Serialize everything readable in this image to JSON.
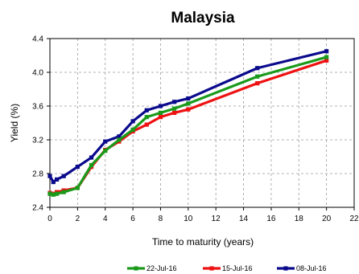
{
  "chart_data": {
    "type": "line",
    "title": "Malaysia",
    "xlabel": "Time to maturity  (years)",
    "ylabel": "Yield  (%)",
    "xlim": [
      0,
      22
    ],
    "ylim": [
      2.4,
      4.4
    ],
    "xticks": [
      "0",
      "2",
      "4",
      "6",
      "8",
      "10",
      "12",
      "14",
      "16",
      "18",
      "20",
      "22"
    ],
    "yticks": [
      "2.4",
      "2.8",
      "3.2",
      "3.6",
      "4.0",
      "4.4"
    ],
    "grid": true,
    "legend_position": "bottom-right",
    "series": [
      {
        "name": "22-Jul-16",
        "color": "#1a9a1a",
        "x": [
          0,
          0.25,
          0.5,
          1,
          2,
          3,
          4,
          5,
          6,
          7,
          8,
          9,
          10,
          15,
          20
        ],
        "y": [
          2.56,
          2.55,
          2.56,
          2.58,
          2.63,
          2.9,
          3.07,
          3.2,
          3.32,
          3.47,
          3.52,
          3.57,
          3.63,
          3.95,
          4.18
        ]
      },
      {
        "name": "15-Jul-16",
        "color": "#ee1111",
        "x": [
          0,
          0.25,
          0.5,
          1,
          2,
          3,
          4,
          5,
          6,
          7,
          8,
          9,
          10,
          15,
          20
        ],
        "y": [
          2.57,
          2.56,
          2.58,
          2.6,
          2.63,
          2.88,
          3.08,
          3.18,
          3.3,
          3.38,
          3.47,
          3.52,
          3.56,
          3.87,
          4.14
        ]
      },
      {
        "name": "08-Jul-16",
        "color": "#0a0a8c",
        "x": [
          0,
          0.25,
          0.5,
          1,
          2,
          3,
          4,
          5,
          6,
          7,
          8,
          9,
          10,
          15,
          20
        ],
        "y": [
          2.77,
          2.7,
          2.73,
          2.77,
          2.88,
          2.99,
          3.18,
          3.24,
          3.42,
          3.55,
          3.6,
          3.65,
          3.69,
          4.05,
          4.25
        ]
      }
    ]
  }
}
